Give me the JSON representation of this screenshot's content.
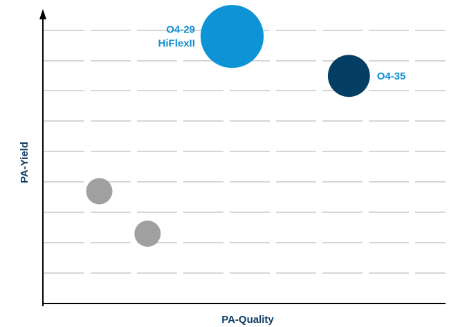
{
  "chart_data": {
    "type": "scatter",
    "subtype": "bubble",
    "title": "",
    "xlabel": "PA-Quality",
    "ylabel": "PA-Yield",
    "ticks_shown": false,
    "grid": "horizontal-dashed",
    "xlim": [
      0,
      10
    ],
    "ylim": [
      0,
      10
    ],
    "points": [
      {
        "label": "",
        "label_lines": [],
        "x": 1.4,
        "y": 3.7,
        "size": 1.0,
        "color": "#a0a0a0"
      },
      {
        "label": "",
        "label_lines": [],
        "x": 2.6,
        "y": 2.3,
        "size": 1.0,
        "color": "#a0a0a0"
      },
      {
        "label": "O4-29 HiFlexII",
        "label_lines": [
          "O4-29",
          "HiFlexII"
        ],
        "x": 4.7,
        "y": 8.8,
        "size": 2.4,
        "color": "#0d93d6"
      },
      {
        "label": "O4-35",
        "label_lines": [
          "O4-35"
        ],
        "x": 7.6,
        "y": 7.5,
        "size": 1.6,
        "color": "#053e63"
      }
    ],
    "colors": {
      "axis": "#000000",
      "grid": "#c8c8c8",
      "axis_label": "#0f3d63",
      "point_label": "#0f8fd3"
    }
  }
}
